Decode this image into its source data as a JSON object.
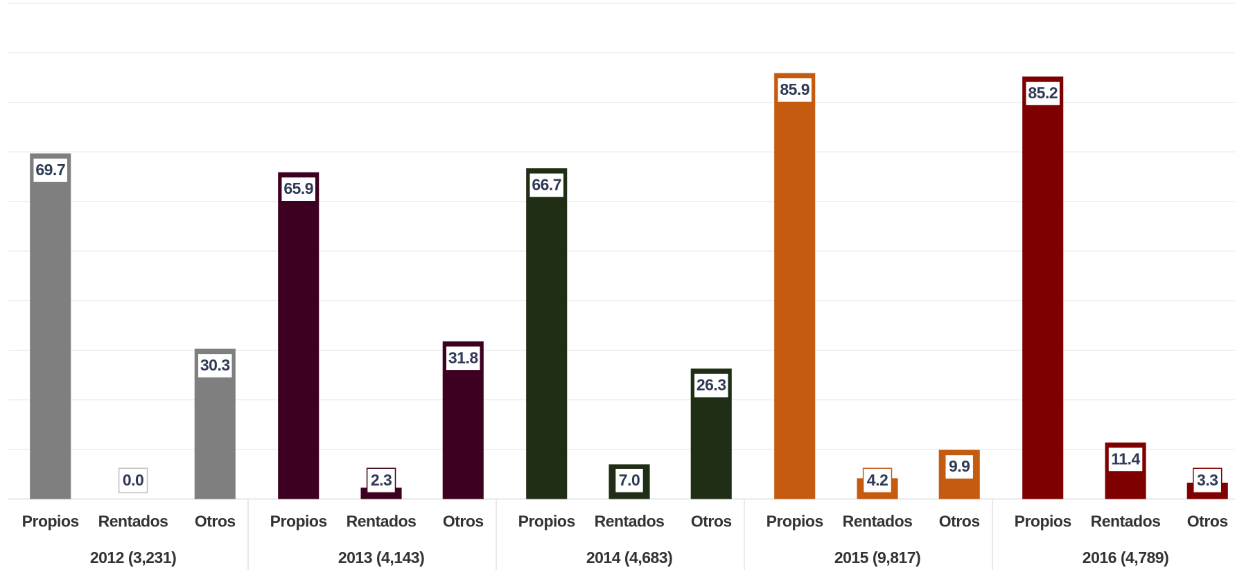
{
  "chart_data": {
    "type": "bar",
    "ylim": [
      0,
      100
    ],
    "yticks": [
      0,
      10,
      20,
      30,
      40,
      50,
      60,
      70,
      80,
      90,
      100
    ],
    "grid": true,
    "groups": [
      {
        "label": "2012 (3,231)",
        "color": "#7f7f7f",
        "categories": [
          "Propios",
          "Rentados",
          "Otros"
        ],
        "values": [
          69.7,
          0,
          30.3
        ],
        "value_labels": [
          "69.7",
          "0.0",
          "30.3"
        ]
      },
      {
        "label": "2013 (4,143)",
        "color": "#3d0020",
        "categories": [
          "Propios",
          "Rentados",
          "Otros"
        ],
        "values": [
          65.9,
          2.3,
          31.8
        ],
        "value_labels": [
          "65.9",
          "2.3",
          "31.8"
        ]
      },
      {
        "label": "2014 (4,683)",
        "color": "#1f2e14",
        "categories": [
          "Propios",
          "Rentados",
          "Otros"
        ],
        "values": [
          66.7,
          7,
          26.3
        ],
        "value_labels": [
          "66.7",
          "7.0",
          "26.3"
        ]
      },
      {
        "label": "2015 (9,817)",
        "color": "#c55a11",
        "categories": [
          "Propios",
          "Rentados",
          "Otros"
        ],
        "values": [
          85.9,
          4.2,
          9.9
        ],
        "value_labels": [
          "85.9",
          "4.2",
          "9.9"
        ]
      },
      {
        "label": "2016 (4,789)",
        "color": "#7f0000",
        "categories": [
          "Propios",
          "Rentados",
          "Otros"
        ],
        "values": [
          85.2,
          11.4,
          3.3
        ],
        "value_labels": [
          "85.2",
          "11.4",
          "3.3"
        ]
      }
    ]
  }
}
